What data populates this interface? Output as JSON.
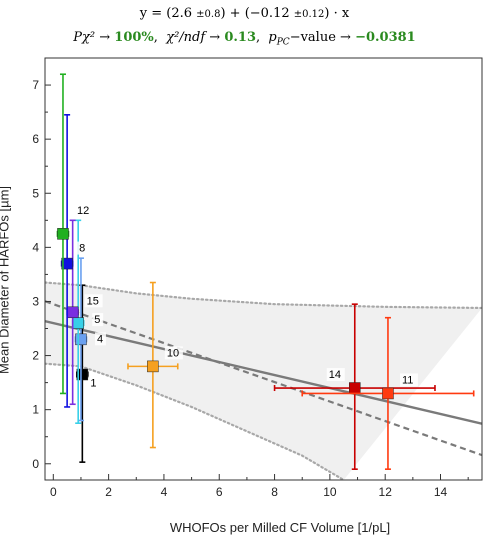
{
  "header": {
    "fit_equation": "y = (2.6 ±0.8) + (−0.12 ±0.12) · x",
    "fit_equation_parts": {
      "prefix": "y = (2.6 ",
      "pm1": "±0.8",
      "mid": ") + (−0.12 ",
      "pm2": "±0.12",
      "suffix": ") · x"
    },
    "stats": {
      "p_chi2_label": "Pχ² →",
      "p_chi2_value": "100%",
      "chi2_ndf_label": "χ²/ndf →",
      "chi2_ndf_value": "0.13",
      "p_pc_label": "p",
      "p_pc_sub": "PC",
      "p_pc_suffix": "−value →",
      "p_pc_value": "−0.0381"
    }
  },
  "colors": {
    "fit_line": "#7a7a7a",
    "band": "#f0f0f0",
    "value_green": "#2a8a1f"
  },
  "chart_data": {
    "type": "scatter",
    "xlabel": "WHOFOs per Milled CF Volume [1/pL]",
    "ylabel": "Mean Diameter of HARFOs [µm]",
    "xlim": [
      -0.3,
      15.5
    ],
    "ylim": [
      -0.3,
      7.5
    ],
    "xticks": [
      0,
      2,
      4,
      6,
      8,
      10,
      12,
      14
    ],
    "yticks": [
      0,
      1,
      2,
      3,
      4,
      5,
      6,
      7
    ],
    "grid": false,
    "fit": {
      "intercept": 2.6,
      "slope": -0.12
    },
    "alt_fit": {
      "intercept": 2.95,
      "slope": -0.18
    },
    "band_upper": [
      [
        -0.3,
        3.35
      ],
      [
        1,
        3.3
      ],
      [
        3,
        3.15
      ],
      [
        5,
        3.05
      ],
      [
        8,
        2.95
      ],
      [
        12,
        2.9
      ],
      [
        15.5,
        2.88
      ]
    ],
    "band_lower": [
      [
        -0.3,
        1.85
      ],
      [
        1,
        1.8
      ],
      [
        3,
        1.45
      ],
      [
        5,
        1.05
      ],
      [
        7,
        0.6
      ],
      [
        9,
        0.15
      ],
      [
        10.5,
        -0.3
      ]
    ],
    "points": [
      {
        "label": "1",
        "x": 1.05,
        "y": 1.65,
        "xerr": 0.2,
        "y_lo": 0.03,
        "y_hi": 3.3,
        "color": "#000000"
      },
      {
        "label": "4",
        "x": 1.0,
        "y": 2.3,
        "xerr": 0.2,
        "y_lo": 0.8,
        "y_hi": 3.8,
        "color": "#6aa0f0"
      },
      {
        "label": "5",
        "x": 0.9,
        "y": 2.6,
        "xerr": 0.2,
        "y_lo": 0.75,
        "y_hi": 4.5,
        "color": "#38d0e8"
      },
      {
        "label": "15",
        "x": 0.7,
        "y": 2.8,
        "xerr": 0.2,
        "y_lo": 1.1,
        "y_hi": 4.5,
        "color": "#7a30e0"
      },
      {
        "label": "8",
        "x": 0.5,
        "y": 3.7,
        "xerr": 0.2,
        "y_lo": 1.05,
        "y_hi": 6.45,
        "color": "#1010e0"
      },
      {
        "label": "12",
        "x": 0.35,
        "y": 4.25,
        "xerr": 0.2,
        "y_lo": 1.3,
        "y_hi": 7.2,
        "color": "#20b020"
      },
      {
        "label": "10",
        "x": 3.6,
        "y": 1.8,
        "xerr": 0.9,
        "y_lo": 0.3,
        "y_hi": 3.35,
        "color": "#f5a020"
      },
      {
        "label": "14",
        "x": 10.9,
        "y": 1.4,
        "xerr": 2.9,
        "y_lo": -0.1,
        "y_hi": 2.95,
        "color": "#c80000"
      },
      {
        "label": "11",
        "x": 12.1,
        "y": 1.3,
        "xerr": 3.1,
        "y_lo": -0.1,
        "y_hi": 2.7,
        "color": "#ff3a10"
      }
    ]
  }
}
